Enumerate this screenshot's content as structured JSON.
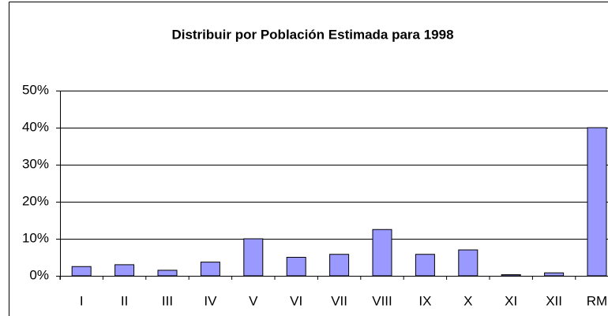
{
  "chart_data": {
    "type": "bar",
    "title": "Distribuir por Población Estimada para 1998",
    "categories": [
      "I",
      "II",
      "III",
      "IV",
      "V",
      "VI",
      "VII",
      "VIII",
      "IX",
      "X",
      "XI",
      "XII",
      "RM"
    ],
    "values": [
      2.5,
      3,
      1.5,
      3.7,
      10,
      5,
      5.8,
      12.5,
      5.8,
      7,
      0.3,
      0.8,
      40
    ],
    "color": "#9999ff",
    "ylim": [
      0,
      50
    ],
    "yticks": [
      {
        "value": 0,
        "label": "0%"
      },
      {
        "value": 10,
        "label": "10%"
      },
      {
        "value": 20,
        "label": "20%"
      },
      {
        "value": 30,
        "label": "30%"
      },
      {
        "value": 40,
        "label": "40%"
      },
      {
        "value": 50,
        "label": "50%"
      }
    ],
    "grid": true
  }
}
